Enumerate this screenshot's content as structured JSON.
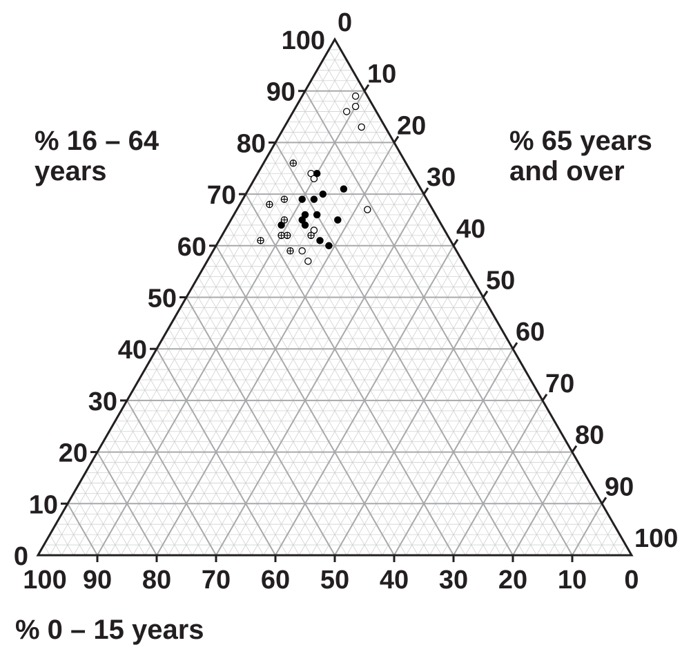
{
  "chart_data": {
    "type": "scatter",
    "subtype": "ternary",
    "axes": {
      "left": {
        "label_line1": "% 16 – 64",
        "label_line2": "years",
        "ticks": [
          "0",
          "10",
          "20",
          "30",
          "40",
          "50",
          "60",
          "70",
          "80",
          "90",
          "100"
        ]
      },
      "right": {
        "label_line1": "% 65 years",
        "label_line2": "and over",
        "ticks": [
          "0",
          "10",
          "20",
          "30",
          "40",
          "50",
          "60",
          "70",
          "80",
          "90",
          "100"
        ]
      },
      "bottom": {
        "label": "% 0 – 15 years",
        "ticks": [
          "100",
          "90",
          "80",
          "70",
          "60",
          "50",
          "40",
          "30",
          "20",
          "10",
          "0"
        ]
      }
    },
    "range": [
      0,
      100
    ],
    "grid": {
      "major_step": 10,
      "minor_step": 2
    },
    "colors": {
      "frame": "#231f20",
      "major_grid": "#a7a9ac",
      "minor_grid": "#cfd0d2"
    },
    "series": [
      {
        "marker": "open-circle",
        "points": [
          {
            "age_16_64": 89,
            "age_65_over": 9
          },
          {
            "age_16_64": 87,
            "age_65_over": 10
          },
          {
            "age_16_64": 86,
            "age_65_over": 9
          },
          {
            "age_16_64": 83,
            "age_65_over": 13
          },
          {
            "age_16_64": 74,
            "age_65_over": 9
          },
          {
            "age_16_64": 73,
            "age_65_over": 10
          },
          {
            "age_16_64": 67,
            "age_65_over": 22
          },
          {
            "age_16_64": 63,
            "age_65_over": 15
          },
          {
            "age_16_64": 59,
            "age_65_over": 15
          },
          {
            "age_16_64": 57,
            "age_65_over": 17
          }
        ]
      },
      {
        "marker": "filled-circle",
        "points": [
          {
            "age_16_64": 74,
            "age_65_over": 10
          },
          {
            "age_16_64": 71,
            "age_65_over": 16
          },
          {
            "age_16_64": 70,
            "age_65_over": 13
          },
          {
            "age_16_64": 69,
            "age_65_over": 10
          },
          {
            "age_16_64": 69,
            "age_65_over": 12
          },
          {
            "age_16_64": 66,
            "age_65_over": 12
          },
          {
            "age_16_64": 66,
            "age_65_over": 14
          },
          {
            "age_16_64": 65,
            "age_65_over": 18
          },
          {
            "age_16_64": 65,
            "age_65_over": 12
          },
          {
            "age_16_64": 64,
            "age_65_over": 9
          },
          {
            "age_16_64": 64,
            "age_65_over": 13
          },
          {
            "age_16_64": 61,
            "age_65_over": 17
          },
          {
            "age_16_64": 60,
            "age_65_over": 19
          }
        ]
      },
      {
        "marker": "crossed-circle",
        "points": [
          {
            "age_16_64": 76,
            "age_65_over": 5
          },
          {
            "age_16_64": 69,
            "age_65_over": 7
          },
          {
            "age_16_64": 68,
            "age_65_over": 5
          },
          {
            "age_16_64": 65,
            "age_65_over": 9
          },
          {
            "age_16_64": 62,
            "age_65_over": 10
          },
          {
            "age_16_64": 62,
            "age_65_over": 11
          },
          {
            "age_16_64": 62,
            "age_65_over": 15
          },
          {
            "age_16_64": 61,
            "age_65_over": 7
          },
          {
            "age_16_64": 59,
            "age_65_over": 13
          }
        ]
      }
    ]
  }
}
